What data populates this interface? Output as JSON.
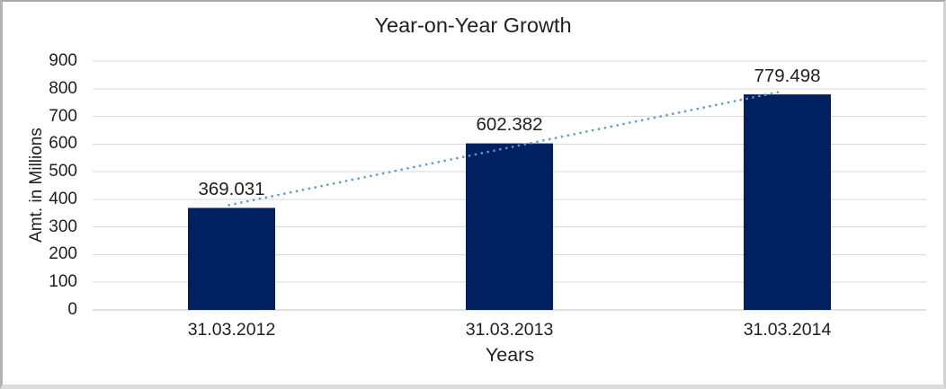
{
  "chart_data": {
    "type": "bar",
    "title": "Year-on-Year Growth",
    "xlabel": "Years",
    "ylabel": "Amt. in Millions",
    "categories": [
      "31.03.2012",
      "31.03.2013",
      "31.03.2014"
    ],
    "values": [
      369.031,
      602.382,
      779.498
    ],
    "data_labels": [
      "369.031",
      "602.382",
      "779.498"
    ],
    "y_axis": {
      "min": 0,
      "max": 900,
      "step": 100,
      "tick_labels": [
        "0",
        "100",
        "200",
        "300",
        "400",
        "500",
        "600",
        "700",
        "800",
        "900"
      ]
    },
    "grid": "horizontal",
    "legend": "none",
    "trendline": {
      "type": "linear",
      "style": "dotted"
    },
    "colors": {
      "bar": "#002060",
      "trendline": "#5b9bd5",
      "gridline": "#d9d9d9",
      "axis_line": "#c0c0c0",
      "text": "#1f1f1f"
    }
  }
}
